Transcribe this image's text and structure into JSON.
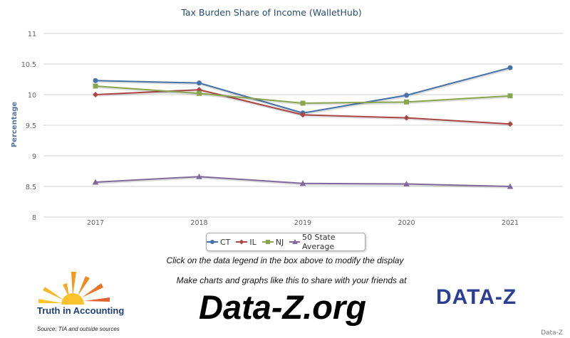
{
  "chart_data": {
    "type": "line",
    "title": "Tax Burden Share of Income (WalletHub)",
    "ylabel": "Percentage",
    "xlabel": "",
    "x": [
      "2017",
      "2018",
      "2019",
      "2020",
      "2021"
    ],
    "ylim": [
      8,
      11
    ],
    "yticks": [
      "8",
      "8.5",
      "9",
      "9.5",
      "10",
      "10.5",
      "11"
    ],
    "grid": true,
    "series": [
      {
        "name": "CT",
        "color": "#4572a7",
        "marker": "circle",
        "values": [
          10.23,
          10.19,
          9.7,
          9.99,
          10.44
        ]
      },
      {
        "name": "IL",
        "color": "#aa4643",
        "marker": "diamond",
        "values": [
          10.0,
          10.08,
          9.67,
          9.62,
          9.52
        ]
      },
      {
        "name": "NJ",
        "color": "#89a54e",
        "marker": "square",
        "values": [
          10.14,
          10.02,
          9.86,
          9.88,
          9.98
        ]
      },
      {
        "name": "50 State Average",
        "color": "#80699b",
        "marker": "triangle",
        "values": [
          8.57,
          8.66,
          8.55,
          8.54,
          8.5
        ]
      }
    ],
    "legend_position": "bottom"
  },
  "footer": {
    "hint": "Click on the data legend in the box above to modify the display",
    "promo": "Make charts and graphs like this to share with your friends at",
    "site": "Data-Z.org",
    "tia_name": "Truth in Accounting",
    "source": "Source: TIA and outside sources",
    "dz_logo": "DATA-Z",
    "credit": "Data-Z"
  }
}
